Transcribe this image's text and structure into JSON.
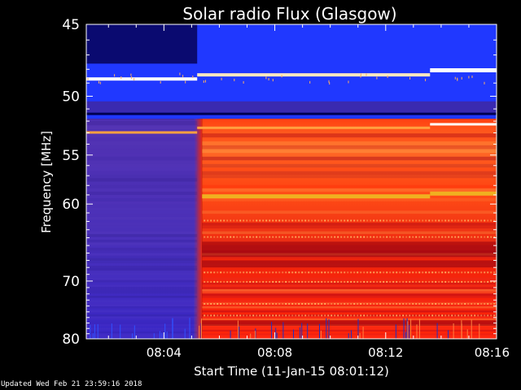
{
  "footer": "Updated Wed Feb 21 23:59:16 2018",
  "colors": {
    "background": "#000000",
    "quiet_band": "#4a2aa0",
    "active_band": "#e83010",
    "top_band": "#1a30ff",
    "hot_line": "#ffe060"
  },
  "chart_data": {
    "type": "heatmap",
    "title": "Solar radio Flux (Glasgow)",
    "xlabel": "Start Time (11-Jan-15 08:01:12)",
    "ylabel": "Frequency [MHz]",
    "x_start": "08:01:12",
    "x_end": "08:16:00",
    "xlim_minutes": [
      1.2,
      16
    ],
    "ylim": [
      45,
      80
    ],
    "y_scale": "reciprocal",
    "xticks": [
      {
        "value": 4,
        "label": "08:04"
      },
      {
        "value": 8,
        "label": "08:08"
      },
      {
        "value": 12,
        "label": "08:12"
      },
      {
        "value": 16,
        "label": "08:16"
      }
    ],
    "yticks": [
      {
        "value": 45,
        "label": "45"
      },
      {
        "value": 50,
        "label": "50"
      },
      {
        "value": 55,
        "label": "55"
      },
      {
        "value": 60,
        "label": "60"
      },
      {
        "value": 70,
        "label": "70"
      },
      {
        "value": 80,
        "label": "80"
      }
    ],
    "transition_time_minutes": 5.2,
    "bright_lines_mhz": [
      48.8,
      53.2,
      59.2
    ],
    "grid": false,
    "colorscale": [
      "#0a0060",
      "#3020c0",
      "#1a40ff",
      "#c01020",
      "#ff3010",
      "#ff8020",
      "#ffe060",
      "#ffffff"
    ]
  }
}
